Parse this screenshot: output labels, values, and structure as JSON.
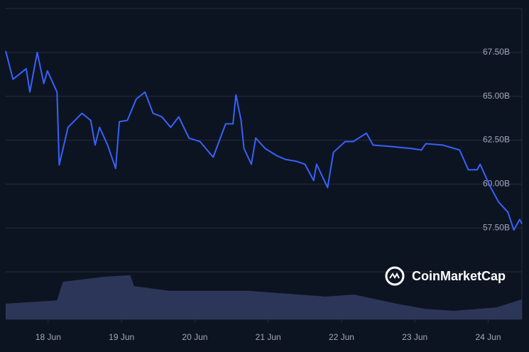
{
  "chart_data": {
    "type": "line",
    "brand": "CoinMarketCap",
    "x": [
      17.42,
      17.52,
      17.7,
      17.75,
      17.85,
      17.94,
      17.99,
      18.12,
      18.15,
      18.27,
      18.46,
      18.58,
      18.64,
      18.7,
      18.81,
      18.92,
      18.97,
      19.08,
      19.2,
      19.32,
      19.43,
      19.55,
      19.67,
      19.78,
      19.92,
      20.07,
      20.25,
      20.42,
      20.52,
      20.56,
      20.63,
      20.67,
      20.77,
      20.83,
      20.96,
      21.12,
      21.23,
      21.39,
      21.5,
      21.62,
      21.66,
      21.81,
      21.89,
      22.05,
      22.16,
      22.34,
      22.43,
      22.67,
      22.96,
      23.09,
      23.15,
      23.38,
      23.61,
      23.73,
      23.85,
      23.89,
      24.02,
      24.14,
      24.27,
      24.35,
      24.43,
      24.46
    ],
    "series": [
      {
        "color": "#3861fb",
        "values": [
          67.58,
          65.97,
          66.57,
          65.24,
          67.5,
          65.73,
          66.45,
          65.24,
          61.09,
          63.23,
          64.03,
          63.63,
          62.22,
          63.23,
          62.22,
          60.89,
          63.55,
          63.63,
          64.84,
          65.24,
          64.03,
          63.83,
          63.23,
          63.83,
          62.62,
          62.42,
          61.53,
          63.43,
          63.43,
          65.08,
          63.63,
          62.02,
          61.13,
          62.62,
          62.02,
          61.61,
          61.41,
          61.29,
          61.13,
          60.2,
          61.13,
          59.8,
          61.81,
          62.42,
          62.42,
          62.9,
          62.22,
          62.14,
          62.02,
          61.94,
          62.3,
          62.22,
          61.94,
          60.81,
          60.81,
          61.13,
          59.92,
          58.99,
          58.39,
          57.38,
          57.98,
          57.74
        ]
      }
    ],
    "volume": {
      "color": "#2c3658",
      "x": [
        17.42,
        18.12,
        18.2,
        18.79,
        19.12,
        19.17,
        19.65,
        20.72,
        21.78,
        22.17,
        22.75,
        23.14,
        23.53,
        24.11,
        24.46
      ],
      "values": [
        33,
        40,
        79,
        90,
        93,
        70,
        60,
        60,
        48,
        52,
        33,
        22,
        18,
        25,
        42
      ],
      "ylim": [
        0,
        100
      ]
    },
    "xlim": [
      17.42,
      24.46
    ],
    "xticks": [
      {
        "value": 18,
        "label": "18 Jun"
      },
      {
        "value": 19,
        "label": "19 Jun"
      },
      {
        "value": 20,
        "label": "20 Jun"
      },
      {
        "value": 21,
        "label": "21 Jun"
      },
      {
        "value": 22,
        "label": "22 Jun"
      },
      {
        "value": 23,
        "label": "23 Jun"
      },
      {
        "value": 24,
        "label": "24 Jun"
      }
    ],
    "ylim": [
      55,
      70
    ],
    "yticks": [
      {
        "value": 57.5,
        "label": "57.50B"
      },
      {
        "value": 60,
        "label": "60.00B"
      },
      {
        "value": 62.5,
        "label": "62.50B"
      },
      {
        "value": 65,
        "label": "65.00B"
      },
      {
        "value": 67.5,
        "label": "67.50B"
      }
    ],
    "grid": true
  }
}
